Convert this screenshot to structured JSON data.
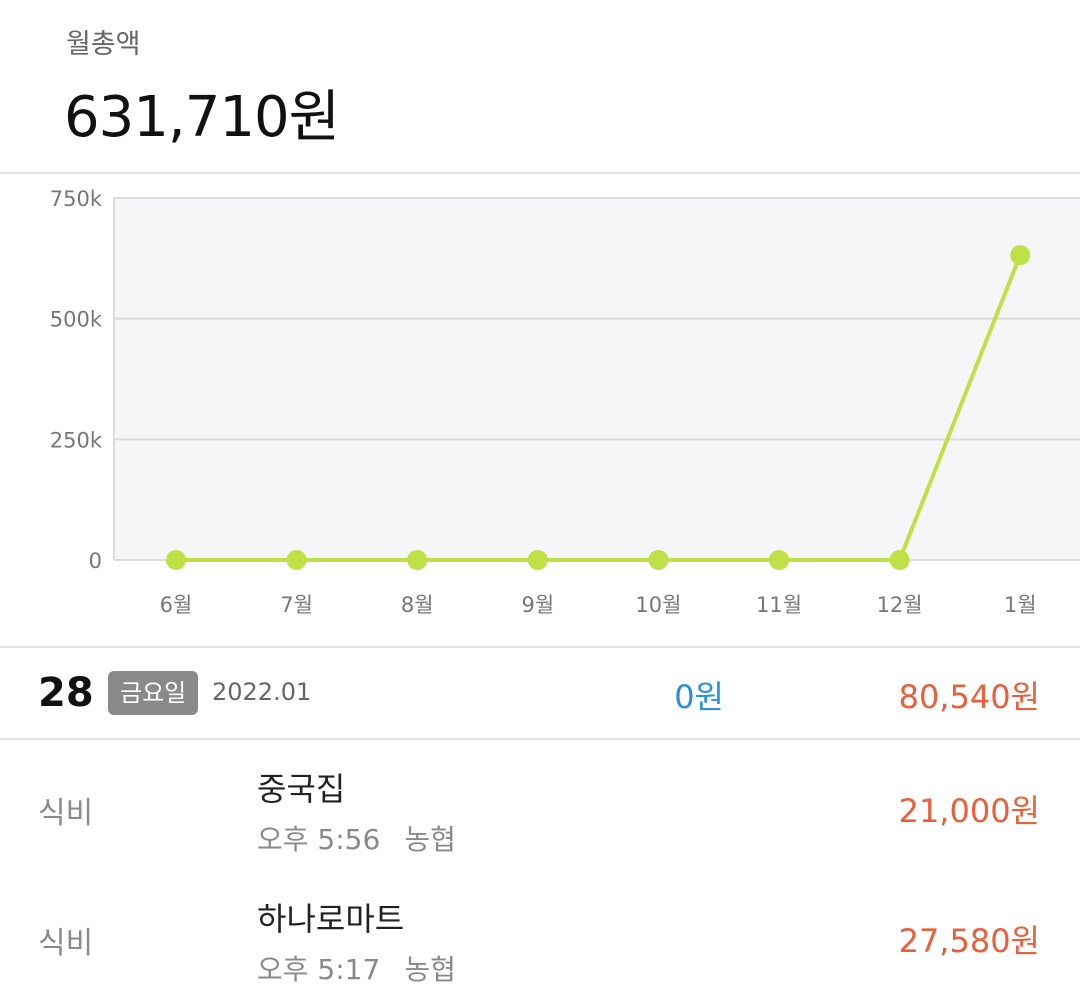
{
  "summary": {
    "label": "월총액",
    "amount": "631,710원"
  },
  "chart_data": {
    "type": "line",
    "categories": [
      "6월",
      "7월",
      "8월",
      "9월",
      "10월",
      "11월",
      "12월",
      "1월"
    ],
    "values": [
      0,
      0,
      0,
      0,
      0,
      0,
      0,
      631710
    ],
    "y_ticks": [
      "750k",
      "500k",
      "250k",
      "0"
    ],
    "ylim": [
      0,
      750000
    ],
    "grid": true,
    "color": "#bfe046"
  },
  "day": {
    "number": "28",
    "weekday": "금요일",
    "year_month": "2022.01",
    "income": "0원",
    "expense": "80,540원"
  },
  "transactions": [
    {
      "category": "식비",
      "title": "중국집",
      "time": "오후 5:56",
      "account": "농협",
      "amount": "21,000원"
    },
    {
      "category": "식비",
      "title": "하나로마트",
      "time": "오후 5:17",
      "account": "농협",
      "amount": "27,580원"
    }
  ],
  "colors": {
    "income": "#2a8fe0",
    "expense": "#e8603c",
    "badge": "#8a8a8a",
    "line": "#bfe046"
  }
}
